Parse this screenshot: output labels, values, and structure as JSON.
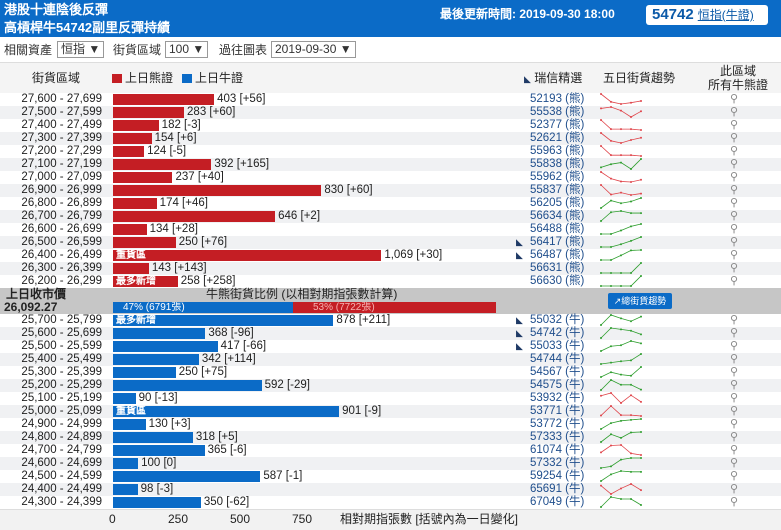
{
  "header": {
    "title_line1": "港股十連陰後反彈",
    "title_line2": "高槓桿牛54742副里反彈持績",
    "updated": "最後更新時間: 2019-09-30 18:00",
    "featured_code": "54742",
    "featured_label": "恒指(牛證)"
  },
  "toolbar": {
    "asset_label": "相關資產",
    "asset_value": "恒指 ▼",
    "zone_label": "街貨區域",
    "zone_value": "100 ▼",
    "history_label": "過往圖表",
    "history_value": "2019-09-30 ▼"
  },
  "columns": {
    "zone": "街貨區域",
    "bear_legend": "上日熊證",
    "bull_legend": "上日牛證",
    "picks": "瑞信精選",
    "trend": "五日街貨趨勢",
    "all_line1": "此區域",
    "all_line2": "所有牛熊證"
  },
  "colors": {
    "bear": "#c41e24",
    "bull": "#0b6bc7",
    "trend_up": "#2e9e2e",
    "trend_down": "#e0454b"
  },
  "bear_rows": [
    {
      "range": "27,600 - 27,699",
      "value": 403,
      "label": "403 [+56]",
      "code": "52193 (熊)",
      "trend": [
        30,
        12,
        7,
        10,
        14
      ],
      "trend_color": "down"
    },
    {
      "range": "27,500 - 27,599",
      "value": 283,
      "label": "283 [+60]",
      "code": "55538 (熊)",
      "trend": [
        12,
        14,
        9,
        0,
        8
      ],
      "trend_color": "down"
    },
    {
      "range": "27,400 - 27,499",
      "value": 182,
      "label": "182 [-3]",
      "code": "52377 (熊)",
      "trend": [
        24,
        3,
        3,
        3,
        1
      ],
      "trend_color": "down"
    },
    {
      "range": "27,300 - 27,399",
      "value": 154,
      "label": "154 [+6]",
      "code": "52621 (熊)",
      "trend": [
        25,
        7,
        2,
        9,
        14
      ],
      "trend_color": "down"
    },
    {
      "range": "27,200 - 27,299",
      "value": 124,
      "label": "124 [-5]",
      "code": "55963 (熊)",
      "trend": [
        24,
        2,
        2,
        2,
        0
      ],
      "trend_color": "down"
    },
    {
      "range": "27,100 - 27,199",
      "value": 392,
      "label": "392 [+165]",
      "code": "55838 (熊)",
      "trend": [
        7,
        15,
        19,
        3,
        28
      ],
      "trend_color": "up"
    },
    {
      "range": "27,000 - 27,099",
      "value": 237,
      "label": "237 [+40]",
      "code": "55962 (熊)",
      "trend": [
        20,
        8,
        3,
        2,
        6
      ],
      "trend_color": "down"
    },
    {
      "range": "26,900 - 26,999",
      "value": 830,
      "label": "830 [+60]",
      "code": "55837 (熊)",
      "trend": [
        22,
        2,
        6,
        1,
        4
      ],
      "trend_color": "down"
    },
    {
      "range": "26,800 - 26,899",
      "value": 174,
      "label": "174 [+46]",
      "code": "56205 (熊)",
      "trend": [
        2,
        19,
        13,
        17,
        25
      ],
      "trend_color": "up"
    },
    {
      "range": "26,700 - 26,799",
      "value": 646,
      "label": "646 [+2]",
      "code": "56634 (熊)",
      "trend": [
        2,
        23,
        26,
        21,
        21
      ],
      "trend_color": "up"
    },
    {
      "range": "26,600 - 26,699",
      "value": 134,
      "label": "134 [+28]",
      "code": "56488 (熊)",
      "trend": [
        2,
        2,
        8,
        15,
        19
      ],
      "trend_color": "up"
    },
    {
      "range": "26,500 - 26,599",
      "value": 250,
      "label": "250 [+76]",
      "code": "56417 (熊)",
      "pick": true,
      "trend": [
        2,
        2,
        7,
        13,
        20
      ],
      "trend_color": "up"
    },
    {
      "range": "26,400 - 26,499",
      "value": 1069,
      "label": "1,069 [+30]",
      "tag": "重貨區",
      "code": "56487 (熊)",
      "pick": true,
      "trend": [
        2,
        2,
        13,
        25,
        26
      ],
      "trend_color": "up"
    },
    {
      "range": "26,300 - 26,399",
      "value": 143,
      "label": "143 [+143]",
      "code": "56631 (熊)",
      "trend": [
        0,
        0,
        0,
        0,
        20
      ],
      "trend_color": "up"
    },
    {
      "range": "26,200 - 26,299",
      "value": 258,
      "label": "258 [+258]",
      "tag": "最多新增",
      "code": "56630 (熊)",
      "trend": [
        0,
        0,
        0,
        0,
        20
      ],
      "trend_color": "up"
    }
  ],
  "middle": {
    "close_label": "上日收市價",
    "close_value": "26,092.27",
    "ratio_title": "牛熊街貨比例 (以相對期指張數計算)",
    "bull_pct": 47,
    "bull_text": "47% (6791張)",
    "bear_pct": 53,
    "bear_text": "53% (7722張)",
    "trend_button": "總街貨趨勢"
  },
  "bull_rows": [
    {
      "range": "25,700 - 25,799",
      "value": 878,
      "label": "878 [+211]",
      "tag": "最多新增",
      "code": "55032 (牛)",
      "pick": true,
      "trend": [
        2,
        26,
        18,
        11,
        22
      ],
      "trend_color": "up"
    },
    {
      "range": "25,600 - 25,699",
      "value": 368,
      "label": "368 [-96]",
      "code": "54742 (牛)",
      "pick": true,
      "trend": [
        3,
        25,
        22,
        19,
        11
      ],
      "trend_color": "up"
    },
    {
      "range": "25,500 - 25,599",
      "value": 417,
      "label": "417 [-66]",
      "code": "55033 (牛)",
      "pick": true,
      "trend": [
        2,
        12,
        14,
        23,
        18
      ],
      "trend_color": "up"
    },
    {
      "range": "25,400 - 25,499",
      "value": 342,
      "label": "342 [+114]",
      "code": "54744 (牛)",
      "trend": [
        2,
        5,
        8,
        10,
        24
      ],
      "trend_color": "up"
    },
    {
      "range": "25,300 - 25,399",
      "value": 250,
      "label": "250 [+75]",
      "code": "54567 (牛)",
      "trend": [
        2,
        14,
        8,
        5,
        27
      ],
      "trend_color": "up"
    },
    {
      "range": "25,200 - 25,299",
      "value": 592,
      "label": "592 [-29]",
      "code": "54575 (牛)",
      "trend": [
        2,
        27,
        15,
        15,
        3
      ],
      "trend_color": "up"
    },
    {
      "range": "25,100 - 25,199",
      "value": 90,
      "label": "90 [-13]",
      "code": "53932 (牛)",
      "trend": [
        15,
        20,
        2,
        16,
        4
      ],
      "trend_color": "down"
    },
    {
      "range": "25,000 - 25,099",
      "value": 901,
      "label": "901 [-9]",
      "tag": "重貨區",
      "code": "53771 (牛)",
      "trend": [
        2,
        23,
        3,
        3,
        1
      ],
      "trend_color": "down"
    },
    {
      "range": "24,900 - 24,999",
      "value": 130,
      "label": "130 [+3]",
      "code": "53772 (牛)",
      "trend": [
        2,
        15,
        20,
        22,
        24
      ],
      "trend_color": "up"
    },
    {
      "range": "24,800 - 24,899",
      "value": 318,
      "label": "318 [+5]",
      "code": "57333 (牛)",
      "trend": [
        2,
        19,
        11,
        23,
        24
      ],
      "trend_color": "up"
    },
    {
      "range": "24,700 - 24,799",
      "value": 365,
      "label": "365 [-6]",
      "code": "61074 (牛)",
      "trend": [
        7,
        20,
        21,
        5,
        2
      ],
      "trend_color": "down"
    },
    {
      "range": "24,600 - 24,699",
      "value": 100,
      "label": "100 [0]",
      "code": "57332 (牛)",
      "trend": [
        2,
        5,
        17,
        20,
        20
      ],
      "trend_color": "up"
    },
    {
      "range": "24,500 - 24,599",
      "value": 587,
      "label": "587 [-1]",
      "code": "59254 (牛)",
      "trend": [
        2,
        18,
        26,
        24,
        24
      ],
      "trend_color": "up"
    },
    {
      "range": "24,400 - 24,499",
      "value": 98,
      "label": "98 [-3]",
      "code": "65691 (牛)",
      "trend": [
        17,
        2,
        12,
        20,
        9
      ],
      "trend_color": "down"
    },
    {
      "range": "24,300 - 24,399",
      "value": 350,
      "label": "350 [-62]",
      "code": "67049 (牛)",
      "trend": [
        2,
        22,
        18,
        18,
        6
      ],
      "trend_color": "up"
    }
  ],
  "axis": {
    "ticks": [
      "0",
      "250",
      "500",
      "750"
    ],
    "title": "相對期指張數 [括號內為一日變化]"
  }
}
